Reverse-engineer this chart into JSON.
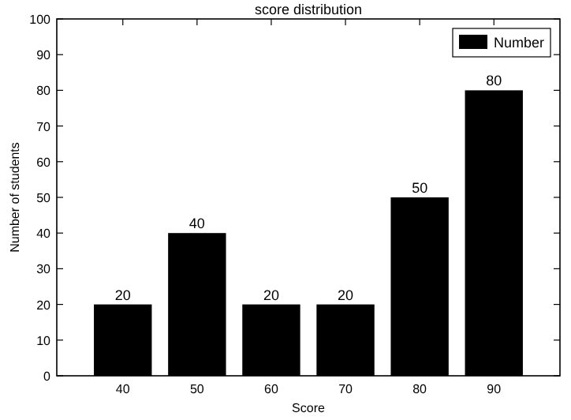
{
  "chart_data": {
    "type": "bar",
    "title": "score distribution",
    "xlabel": "Score",
    "ylabel": "Number of students",
    "categories": [
      "40",
      "50",
      "60",
      "70",
      "80",
      "90"
    ],
    "series": [
      {
        "name": "Number",
        "color": "#000000",
        "values": [
          20,
          40,
          20,
          20,
          50,
          80
        ]
      }
    ],
    "ylim": [
      0,
      100
    ],
    "yticks": [
      0,
      10,
      20,
      30,
      40,
      50,
      60,
      70,
      80,
      90,
      100
    ],
    "data_labels": true,
    "legend": "top right"
  }
}
